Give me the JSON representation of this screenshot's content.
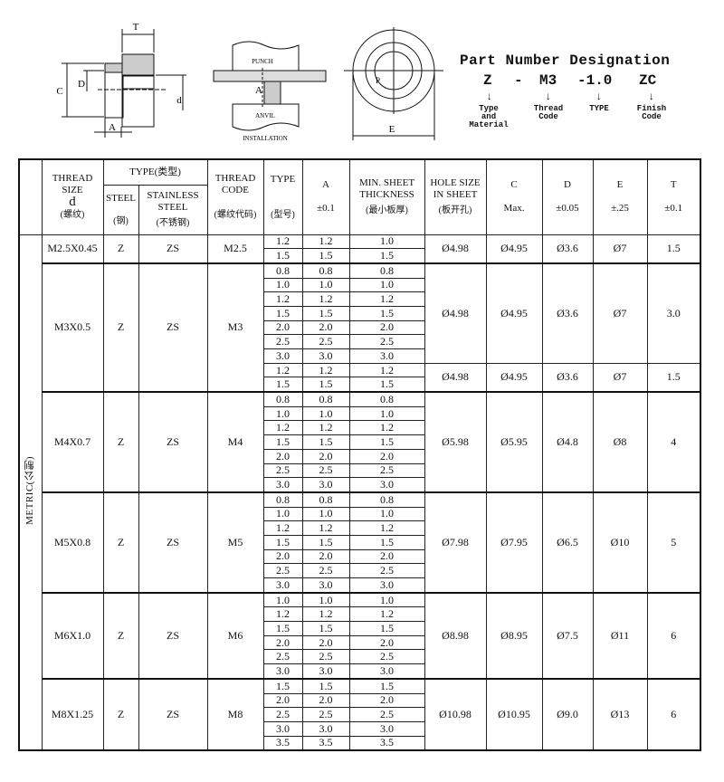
{
  "diagrams": {
    "part_view": {
      "labels": {
        "T": "T",
        "C": "C",
        "D": "D",
        "d": "d",
        "A": "A"
      }
    },
    "installation": {
      "punch": "PUNCH",
      "anvil": "ANVIL",
      "a": "A",
      "caption": "INSTALLATION"
    },
    "top_view": {
      "e": "E",
      "p": "P"
    }
  },
  "part_number": {
    "title": "Part Number Designation",
    "codes": [
      "Z",
      "-",
      "M3",
      "-1.0",
      "ZC"
    ],
    "labels": [
      "Type\nand\nMaterial",
      "Thread\nCode",
      "TYPE",
      "Finish\nCode"
    ]
  },
  "table": {
    "side_label": "METRIC(公制)",
    "headers": {
      "thread_size": "THREAD SIZE",
      "thread_size_d": "d",
      "thread_size_cn": "(螺纹)",
      "type_group": "TYPE(类型)",
      "steel": "STEEL",
      "steel_cn": "(钢)",
      "stainless": "STAINLESS STEEL",
      "stainless_cn": "(不锈钢)",
      "thread_code": "THREAD CODE",
      "thread_code_cn": "(螺纹代码)",
      "type": "TYPE",
      "type_cn": "(型号)",
      "a": "A",
      "a_tol": "±0.1",
      "min_sheet": "MIN. SHEET THICKNESS",
      "min_sheet_cn": "(最小板厚)",
      "hole": "HOLE SIZE IN SHEET",
      "hole_cn": "(板开孔)",
      "c": "C",
      "c_tol": "Max.",
      "d": "D",
      "d_tol": "±0.05",
      "e": "E",
      "e_tol": "±.25",
      "t": "T",
      "t_tol": "±0.1"
    },
    "groups": [
      {
        "thread_size": "M2.5X0.45",
        "steel": "Z",
        "stainless": "ZS",
        "code": "M2.5",
        "subgroups": [
          {
            "rows": [
              [
                "1.2",
                "1.2",
                "1.0"
              ],
              [
                "1.5",
                "1.5",
                "1.5"
              ]
            ],
            "hole": "Ø4.98",
            "c": "Ø4.95",
            "d": "Ø3.6",
            "e": "Ø7",
            "t": "1.5"
          }
        ]
      },
      {
        "thread_size": "M3X0.5",
        "steel": "Z",
        "stainless": "ZS",
        "code": "M3",
        "subgroups": [
          {
            "rows": [
              [
                "0.8",
                "0.8",
                "0.8"
              ],
              [
                "1.0",
                "1.0",
                "1.0"
              ],
              [
                "1.2",
                "1.2",
                "1.2"
              ],
              [
                "1.5",
                "1.5",
                "1.5"
              ],
              [
                "2.0",
                "2.0",
                "2.0"
              ],
              [
                "2.5",
                "2.5",
                "2.5"
              ],
              [
                "3.0",
                "3.0",
                "3.0"
              ]
            ],
            "hole": "Ø4.98",
            "c": "Ø4.95",
            "d": "Ø3.6",
            "e": "Ø7",
            "t": "3.0"
          },
          {
            "rows": [
              [
                "1.2",
                "1.2",
                "1.2"
              ],
              [
                "1.5",
                "1.5",
                "1.5"
              ]
            ],
            "hole": "Ø4.98",
            "c": "Ø4.95",
            "d": "Ø3.6",
            "e": "Ø7",
            "t": "1.5"
          }
        ]
      },
      {
        "thread_size": "M4X0.7",
        "steel": "Z",
        "stainless": "ZS",
        "code": "M4",
        "subgroups": [
          {
            "rows": [
              [
                "0.8",
                "0.8",
                "0.8"
              ],
              [
                "1.0",
                "1.0",
                "1.0"
              ],
              [
                "1.2",
                "1.2",
                "1.2"
              ],
              [
                "1.5",
                "1.5",
                "1.5"
              ],
              [
                "2.0",
                "2.0",
                "2.0"
              ],
              [
                "2.5",
                "2.5",
                "2.5"
              ],
              [
                "3.0",
                "3.0",
                "3.0"
              ]
            ],
            "hole": "Ø5.98",
            "c": "Ø5.95",
            "d": "Ø4.8",
            "e": "Ø8",
            "t": "4"
          }
        ]
      },
      {
        "thread_size": "M5X0.8",
        "steel": "Z",
        "stainless": "ZS",
        "code": "M5",
        "subgroups": [
          {
            "rows": [
              [
                "0.8",
                "0.8",
                "0.8"
              ],
              [
                "1.0",
                "1.0",
                "1.0"
              ],
              [
                "1.2",
                "1.2",
                "1.2"
              ],
              [
                "1.5",
                "1.5",
                "1.5"
              ],
              [
                "2.0",
                "2.0",
                "2.0"
              ],
              [
                "2.5",
                "2.5",
                "2.5"
              ],
              [
                "3.0",
                "3.0",
                "3.0"
              ]
            ],
            "hole": "Ø7.98",
            "c": "Ø7.95",
            "d": "Ø6.5",
            "e": "Ø10",
            "t": "5"
          }
        ]
      },
      {
        "thread_size": "M6X1.0",
        "steel": "Z",
        "stainless": "ZS",
        "code": "M6",
        "subgroups": [
          {
            "rows": [
              [
                "1.0",
                "1.0",
                "1.0"
              ],
              [
                "1.2",
                "1.2",
                "1.2"
              ],
              [
                "1.5",
                "1.5",
                "1.5"
              ],
              [
                "2.0",
                "2.0",
                "2.0"
              ],
              [
                "2.5",
                "2.5",
                "2.5"
              ],
              [
                "3.0",
                "3.0",
                "3.0"
              ]
            ],
            "hole": "Ø8.98",
            "c": "Ø8.95",
            "d": "Ø7.5",
            "e": "Ø11",
            "t": "6"
          }
        ]
      },
      {
        "thread_size": "M8X1.25",
        "steel": "Z",
        "stainless": "ZS",
        "code": "M8",
        "subgroups": [
          {
            "rows": [
              [
                "1.5",
                "1.5",
                "1.5"
              ],
              [
                "2.0",
                "2.0",
                "2.0"
              ],
              [
                "2.5",
                "2.5",
                "2.5"
              ],
              [
                "3.0",
                "3.0",
                "3.0"
              ],
              [
                "3.5",
                "3.5",
                "3.5"
              ]
            ],
            "hole": "Ø10.98",
            "c": "Ø10.95",
            "d": "Ø9.0",
            "e": "Ø13",
            "t": "6"
          }
        ]
      }
    ]
  }
}
